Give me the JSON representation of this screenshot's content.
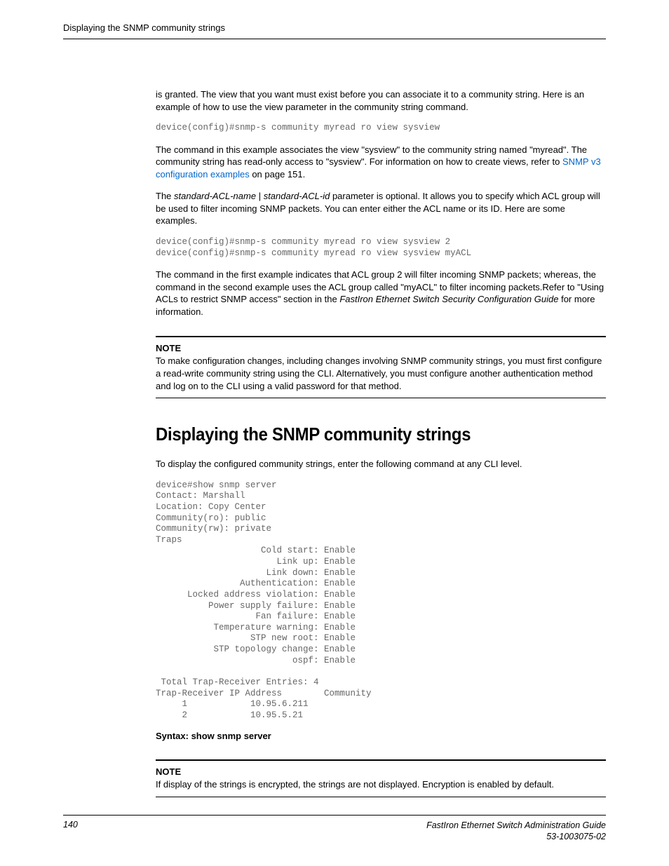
{
  "header": {
    "running_title": "Displaying the SNMP community strings"
  },
  "body": {
    "p1": "is granted. The view that you want must exist before you can associate it to a community string. Here is an example of how to use the view parameter in the community string command.",
    "code1": "device(config)#snmp-s community myread ro view sysview",
    "p2_a": "The command in this example associates the view \"sysview\" to the community string named \"myread\". The community string has read-only access to \"sysview\". For information on how to create views, refer to ",
    "p2_link": "SNMP v3 configuration examples",
    "p2_b": " on page 151.",
    "p3_a": "The ",
    "p3_i1": "standard-ACL-name",
    "p3_mid": " | ",
    "p3_i2": "standard-ACL-id",
    "p3_b": " parameter is optional. It allows you to specify which ACL group will be used to filter incoming SNMP packets. You can enter either the ACL name or its ID. Here are some examples.",
    "code2": "device(config)#snmp-s community myread ro view sysview 2\ndevice(config)#snmp-s community myread ro view sysview myACL",
    "p4_a": "The command in the first example indicates that ACL group 2 will filter incoming SNMP packets; whereas, the command in the second example uses the ACL group called \"myACL\" to filter incoming packets.Refer to \"Using ACLs to restrict SNMP access\" section in the ",
    "p4_i": "FastIron Ethernet Switch Security Configuration Guide",
    "p4_b": " for more information.",
    "note1_label": "NOTE",
    "note1_body": "To make configuration changes, including changes involving SNMP community strings, you must first configure a read-write community string using the CLI. Alternatively, you must configure another authentication method and log on to the CLI using a valid password for that method.",
    "h1": "Displaying the SNMP community strings",
    "p5": "To display the configured community strings, enter the following command at any CLI level.",
    "code3": "device#show snmp server\nContact: Marshall\nLocation: Copy Center\nCommunity(ro): public\nCommunity(rw): private\nTraps\n                    Cold start: Enable\n                       Link up: Enable\n                     Link down: Enable\n                Authentication: Enable\n      Locked address violation: Enable\n          Power supply failure: Enable\n                   Fan failure: Enable\n           Temperature warning: Enable\n                  STP new root: Enable\n           STP topology change: Enable\n                          ospf: Enable\n\n Total Trap-Receiver Entries: 4 \nTrap-Receiver IP Address        Community\n     1            10.95.6.211\n     2            10.95.5.21",
    "syntax": "Syntax: show snmp server",
    "note2_label": "NOTE",
    "note2_body": "If display of the strings is encrypted, the strings are not displayed. Encryption is enabled by default."
  },
  "footer": {
    "page_number": "140",
    "guide_title": "FastIron Ethernet Switch Administration Guide",
    "doc_number": "53-1003075-02"
  }
}
